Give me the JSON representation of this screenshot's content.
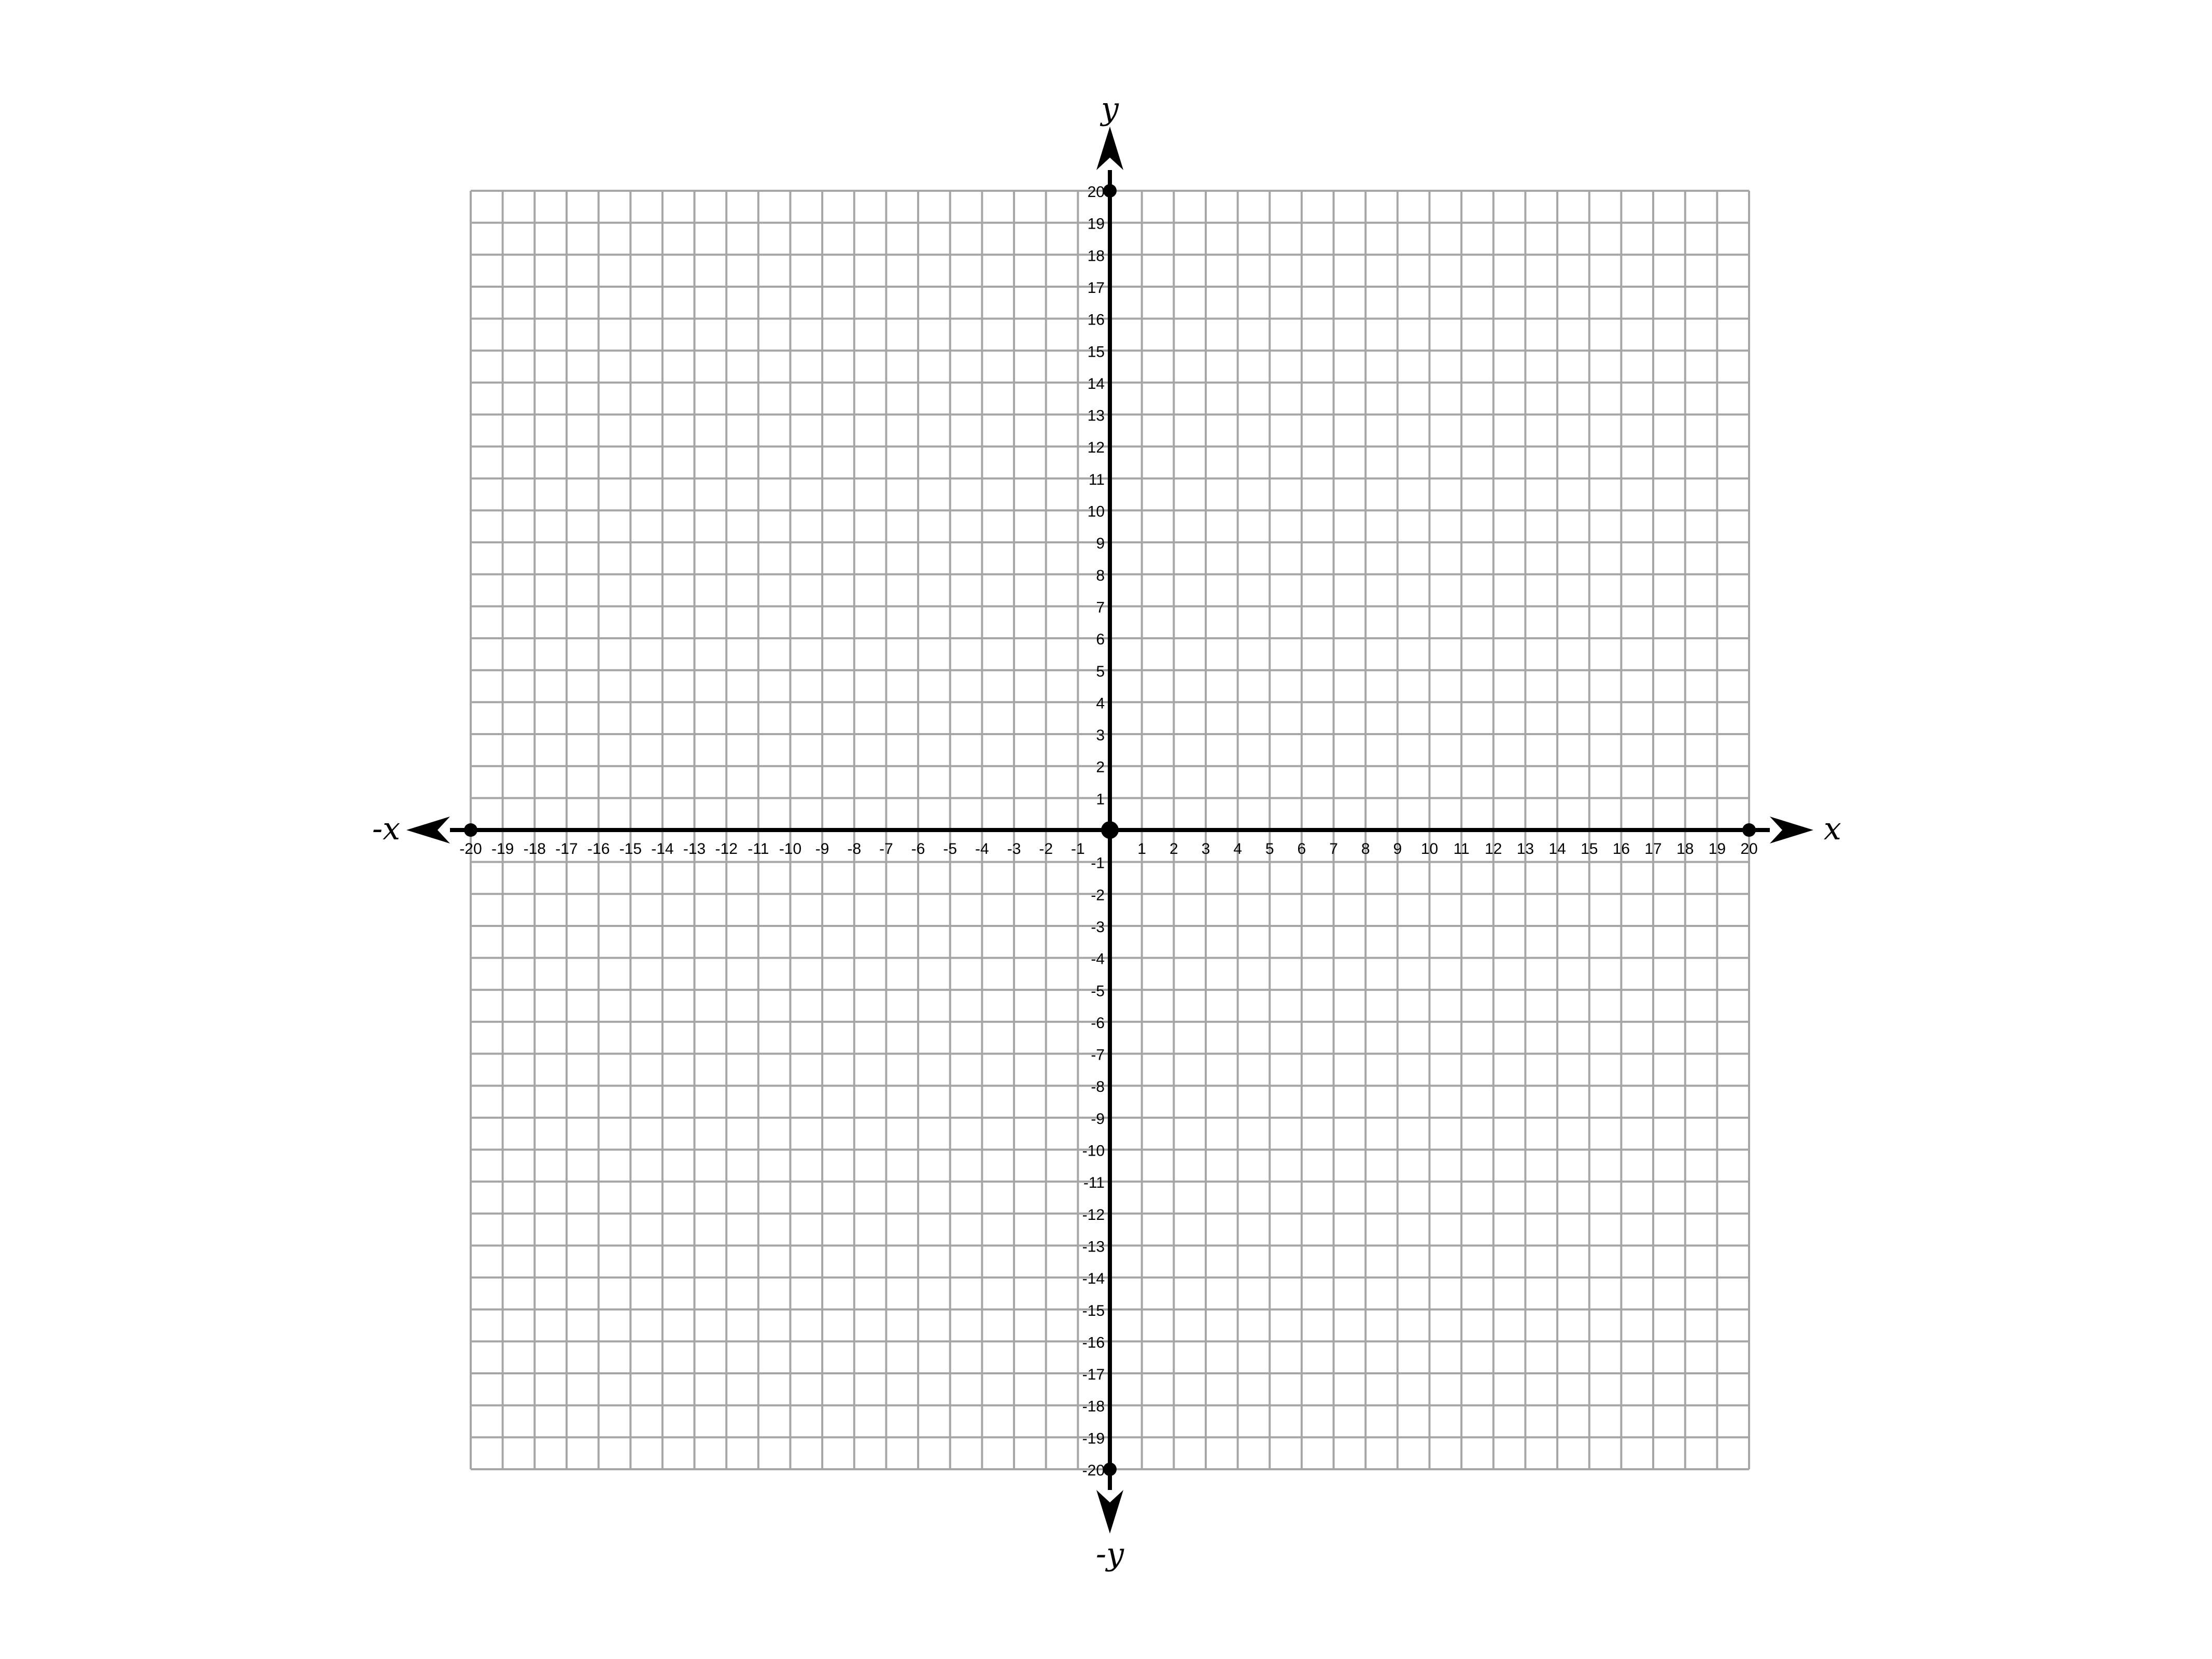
{
  "chart_data": {
    "type": "coordinate-plane",
    "x_range": [
      -20,
      20
    ],
    "y_range": [
      -20,
      20
    ],
    "grid_step": 1,
    "grid": true,
    "axis_labels": {
      "x_positive": "x",
      "x_negative": "-x",
      "y_positive": "y",
      "y_negative": "-y"
    },
    "x_tick_labels": [
      "-20",
      "-19",
      "-18",
      "-17",
      "-16",
      "-15",
      "-14",
      "-13",
      "-12",
      "-11",
      "-10",
      "-9",
      "-8",
      "-7",
      "-6",
      "-5",
      "-4",
      "-3",
      "-2",
      "-1",
      "1",
      "2",
      "3",
      "4",
      "5",
      "6",
      "7",
      "8",
      "9",
      "10",
      "11",
      "12",
      "13",
      "14",
      "15",
      "16",
      "17",
      "18",
      "19",
      "20"
    ],
    "y_tick_labels": [
      "20",
      "19",
      "18",
      "17",
      "16",
      "15",
      "14",
      "13",
      "12",
      "11",
      "10",
      "9",
      "8",
      "7",
      "6",
      "5",
      "4",
      "3",
      "2",
      "1",
      "-1",
      "-2",
      "-3",
      "-4",
      "-5",
      "-6",
      "-7",
      "-8",
      "-9",
      "-10",
      "-11",
      "-12",
      "-13",
      "-14",
      "-15",
      "-16",
      "-17",
      "-18",
      "-19",
      "-20"
    ],
    "marked_points": [
      {
        "x": 0,
        "y": 0
      },
      {
        "x": -20,
        "y": 0
      },
      {
        "x": 20,
        "y": 0
      },
      {
        "x": 0,
        "y": 20
      },
      {
        "x": 0,
        "y": -20
      }
    ],
    "colors": {
      "grid": "#a6a6a6",
      "axes": "#000000",
      "background": "#ffffff"
    }
  }
}
